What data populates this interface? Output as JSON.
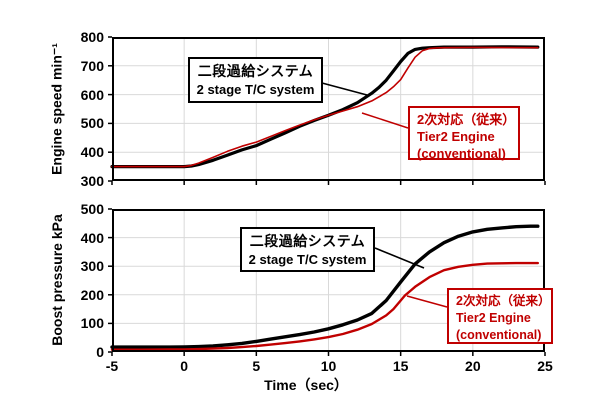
{
  "figure": {
    "background": "#ffffff",
    "curve_black": "#000000",
    "curve_red": "#c00000",
    "grid_color": "#d9d9d9",
    "border_color": "#000000"
  },
  "labels": {
    "two_stage_jp": "二段過給システム",
    "two_stage_en": "2 stage T/C system",
    "tier2_jp": "2次対応（従来）",
    "tier2_en1": "Tier2 Engine",
    "tier2_en2": "(conventional)",
    "top_ylabel": "Engine speed min⁻¹",
    "bottom_ylabel": "Boost pressure kPa",
    "xlabel": "Time（sec）"
  },
  "chart_data": [
    {
      "type": "line",
      "title": "",
      "ylabel": "Engine speed min⁻¹",
      "xlabel": "",
      "xlim": [
        -5,
        25
      ],
      "ylim": [
        300,
        800
      ],
      "xticks": [
        -5,
        0,
        5,
        10,
        15,
        20,
        25
      ],
      "yticks": [
        300,
        400,
        500,
        600,
        700,
        800
      ],
      "show_x_labels": false,
      "grid": true,
      "legend_position": "annotation-boxes",
      "annotations": [
        "二段過給システム / 2 stage T/C system",
        "2次対応（従来） / Tier2 Engine (conventional)"
      ],
      "series": [
        {
          "name": "二段過給システム (2 stage T/C system)",
          "color": "#000000",
          "width": 3.2,
          "points": [
            [
              -5,
              350
            ],
            [
              -3,
              350
            ],
            [
              -1,
              350
            ],
            [
              0,
              350
            ],
            [
              0.5,
              352
            ],
            [
              1,
              357
            ],
            [
              2,
              372
            ],
            [
              3,
              390
            ],
            [
              4,
              408
            ],
            [
              5,
              423
            ],
            [
              6,
              445
            ],
            [
              7,
              467
            ],
            [
              8,
              490
            ],
            [
              9,
              510
            ],
            [
              10,
              528
            ],
            [
              11,
              548
            ],
            [
              12,
              572
            ],
            [
              13,
              605
            ],
            [
              13.5,
              625
            ],
            [
              14,
              650
            ],
            [
              14.5,
              682
            ],
            [
              15,
              715
            ],
            [
              15.5,
              743
            ],
            [
              16,
              757
            ],
            [
              16.5,
              761
            ],
            [
              17,
              763
            ],
            [
              18,
              765
            ],
            [
              20,
              765
            ],
            [
              22,
              766
            ],
            [
              24.5,
              765
            ]
          ]
        },
        {
          "name": "2次対応（従来） Tier2 Engine (conventional)",
          "color": "#c00000",
          "width": 1.6,
          "points": [
            [
              -5,
              350
            ],
            [
              -3,
              350
            ],
            [
              0,
              350
            ],
            [
              0.5,
              354
            ],
            [
              1,
              362
            ],
            [
              2,
              382
            ],
            [
              3,
              403
            ],
            [
              4,
              421
            ],
            [
              5,
              435
            ],
            [
              6,
              455
            ],
            [
              7,
              475
            ],
            [
              8,
              494
            ],
            [
              9,
              512
            ],
            [
              10,
              528
            ],
            [
              11,
              543
            ],
            [
              12,
              558
            ],
            [
              13,
              578
            ],
            [
              14,
              607
            ],
            [
              14.5,
              627
            ],
            [
              15,
              652
            ],
            [
              15.5,
              692
            ],
            [
              16,
              730
            ],
            [
              16.5,
              752
            ],
            [
              17,
              760
            ],
            [
              17.5,
              762
            ],
            [
              18,
              763
            ],
            [
              20,
              764
            ],
            [
              24.5,
              763
            ]
          ]
        }
      ]
    },
    {
      "type": "line",
      "title": "",
      "ylabel": "Boost pressure kPa",
      "xlabel": "Time（sec）",
      "xlim": [
        -5,
        25
      ],
      "ylim": [
        0,
        500
      ],
      "xticks": [
        -5,
        0,
        5,
        10,
        15,
        20,
        25
      ],
      "yticks": [
        0,
        100,
        200,
        300,
        400,
        500
      ],
      "show_x_labels": true,
      "grid": true,
      "legend_position": "annotation-boxes",
      "annotations": [
        "二段過給システム / 2 stage T/C system",
        "2次対応（従来） / Tier2 Engine (conventional)"
      ],
      "series": [
        {
          "name": "二段過給システム (2 stage T/C system)",
          "color": "#000000",
          "width": 3.4,
          "points": [
            [
              -5,
              17
            ],
            [
              -3,
              17
            ],
            [
              -1,
              17
            ],
            [
              0,
              18
            ],
            [
              1,
              19
            ],
            [
              2,
              21
            ],
            [
              3,
              25
            ],
            [
              4,
              30
            ],
            [
              5,
              37
            ],
            [
              6,
              45
            ],
            [
              7,
              53
            ],
            [
              8,
              61
            ],
            [
              9,
              70
            ],
            [
              10,
              81
            ],
            [
              11,
              95
            ],
            [
              12,
              112
            ],
            [
              13,
              135
            ],
            [
              14,
              180
            ],
            [
              15,
              245
            ],
            [
              16,
              308
            ],
            [
              17,
              350
            ],
            [
              18,
              382
            ],
            [
              19,
              405
            ],
            [
              20,
              420
            ],
            [
              21,
              429
            ],
            [
              22,
              434
            ],
            [
              23,
              438
            ],
            [
              24,
              440
            ],
            [
              24.5,
              440
            ]
          ]
        },
        {
          "name": "2次対応（従来） Tier2 Engine (conventional)",
          "color": "#c00000",
          "width": 2.4,
          "points": [
            [
              -5,
              8
            ],
            [
              -3,
              8
            ],
            [
              -1,
              9
            ],
            [
              0,
              9
            ],
            [
              1,
              10
            ],
            [
              2,
              12
            ],
            [
              3,
              14
            ],
            [
              4,
              17
            ],
            [
              5,
              21
            ],
            [
              6,
              26
            ],
            [
              7,
              31
            ],
            [
              8,
              37
            ],
            [
              9,
              44
            ],
            [
              10,
              52
            ],
            [
              11,
              63
            ],
            [
              12,
              78
            ],
            [
              13,
              98
            ],
            [
              14,
              128
            ],
            [
              14.5,
              150
            ],
            [
              15,
              180
            ],
            [
              15.3,
              198
            ],
            [
              15.7,
              215
            ],
            [
              16,
              228
            ],
            [
              17,
              262
            ],
            [
              18,
              286
            ],
            [
              19,
              298
            ],
            [
              20,
              305
            ],
            [
              21,
              309
            ],
            [
              22,
              310
            ],
            [
              23,
              311
            ],
            [
              24.5,
              311
            ]
          ]
        }
      ]
    }
  ]
}
